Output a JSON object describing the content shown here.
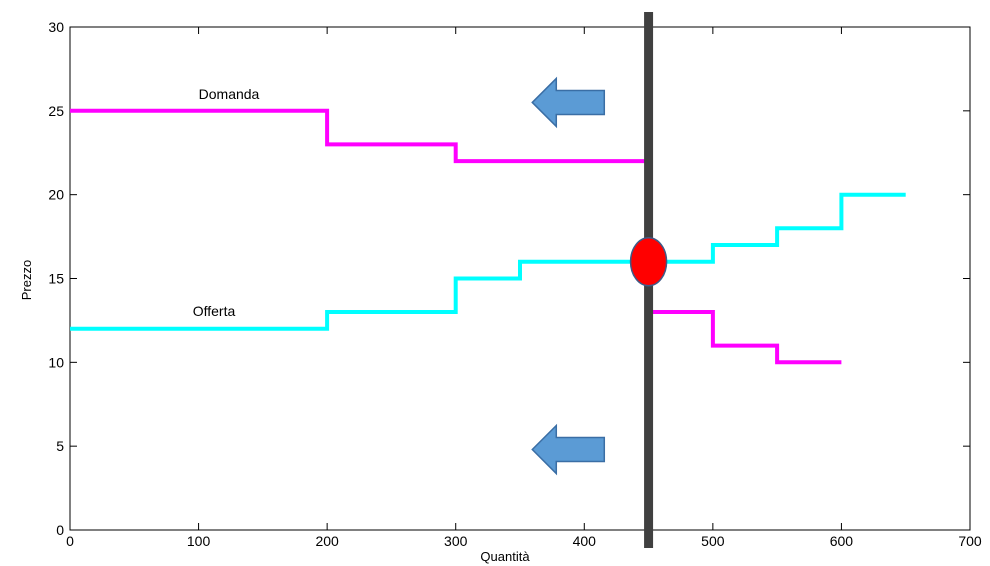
{
  "chart_data": {
    "type": "line",
    "title": "",
    "xlabel": "Quantità",
    "ylabel": "Prezzo",
    "xlim": [
      0,
      700
    ],
    "ylim": [
      0,
      30
    ],
    "xticks": [
      0,
      100,
      200,
      300,
      400,
      500,
      600,
      700
    ],
    "yticks": [
      0,
      5,
      10,
      15,
      20,
      25,
      30
    ],
    "grid": false,
    "series": [
      {
        "name": "Domanda",
        "color": "#ff00ff",
        "step": true,
        "points": [
          [
            0,
            25
          ],
          [
            200,
            25
          ],
          [
            200,
            23
          ],
          [
            300,
            23
          ],
          [
            300,
            22
          ],
          [
            450,
            22
          ],
          [
            450,
            13
          ],
          [
            500,
            13
          ],
          [
            500,
            11
          ],
          [
            550,
            11
          ],
          [
            550,
            10
          ],
          [
            600,
            10
          ]
        ]
      },
      {
        "name": "Offerta",
        "color": "#00ffff",
        "step": true,
        "points": [
          [
            0,
            12
          ],
          [
            200,
            12
          ],
          [
            200,
            13
          ],
          [
            300,
            13
          ],
          [
            300,
            15
          ],
          [
            350,
            15
          ],
          [
            350,
            16
          ],
          [
            450,
            16
          ],
          [
            500,
            16
          ],
          [
            500,
            17
          ],
          [
            550,
            17
          ],
          [
            550,
            18
          ],
          [
            600,
            18
          ],
          [
            600,
            20
          ],
          [
            650,
            20
          ]
        ]
      }
    ],
    "annotations": {
      "vertical_line": {
        "x": 450,
        "color": "#404040"
      },
      "equilibrium_point": {
        "x": 450,
        "y": 16,
        "color": "#ff0000"
      },
      "arrows": [
        {
          "direction": "left",
          "x": 400,
          "y": 25.5,
          "color": "#5b9bd5"
        },
        {
          "direction": "left",
          "x": 400,
          "y": 4.8,
          "color": "#5b9bd5"
        }
      ]
    }
  }
}
